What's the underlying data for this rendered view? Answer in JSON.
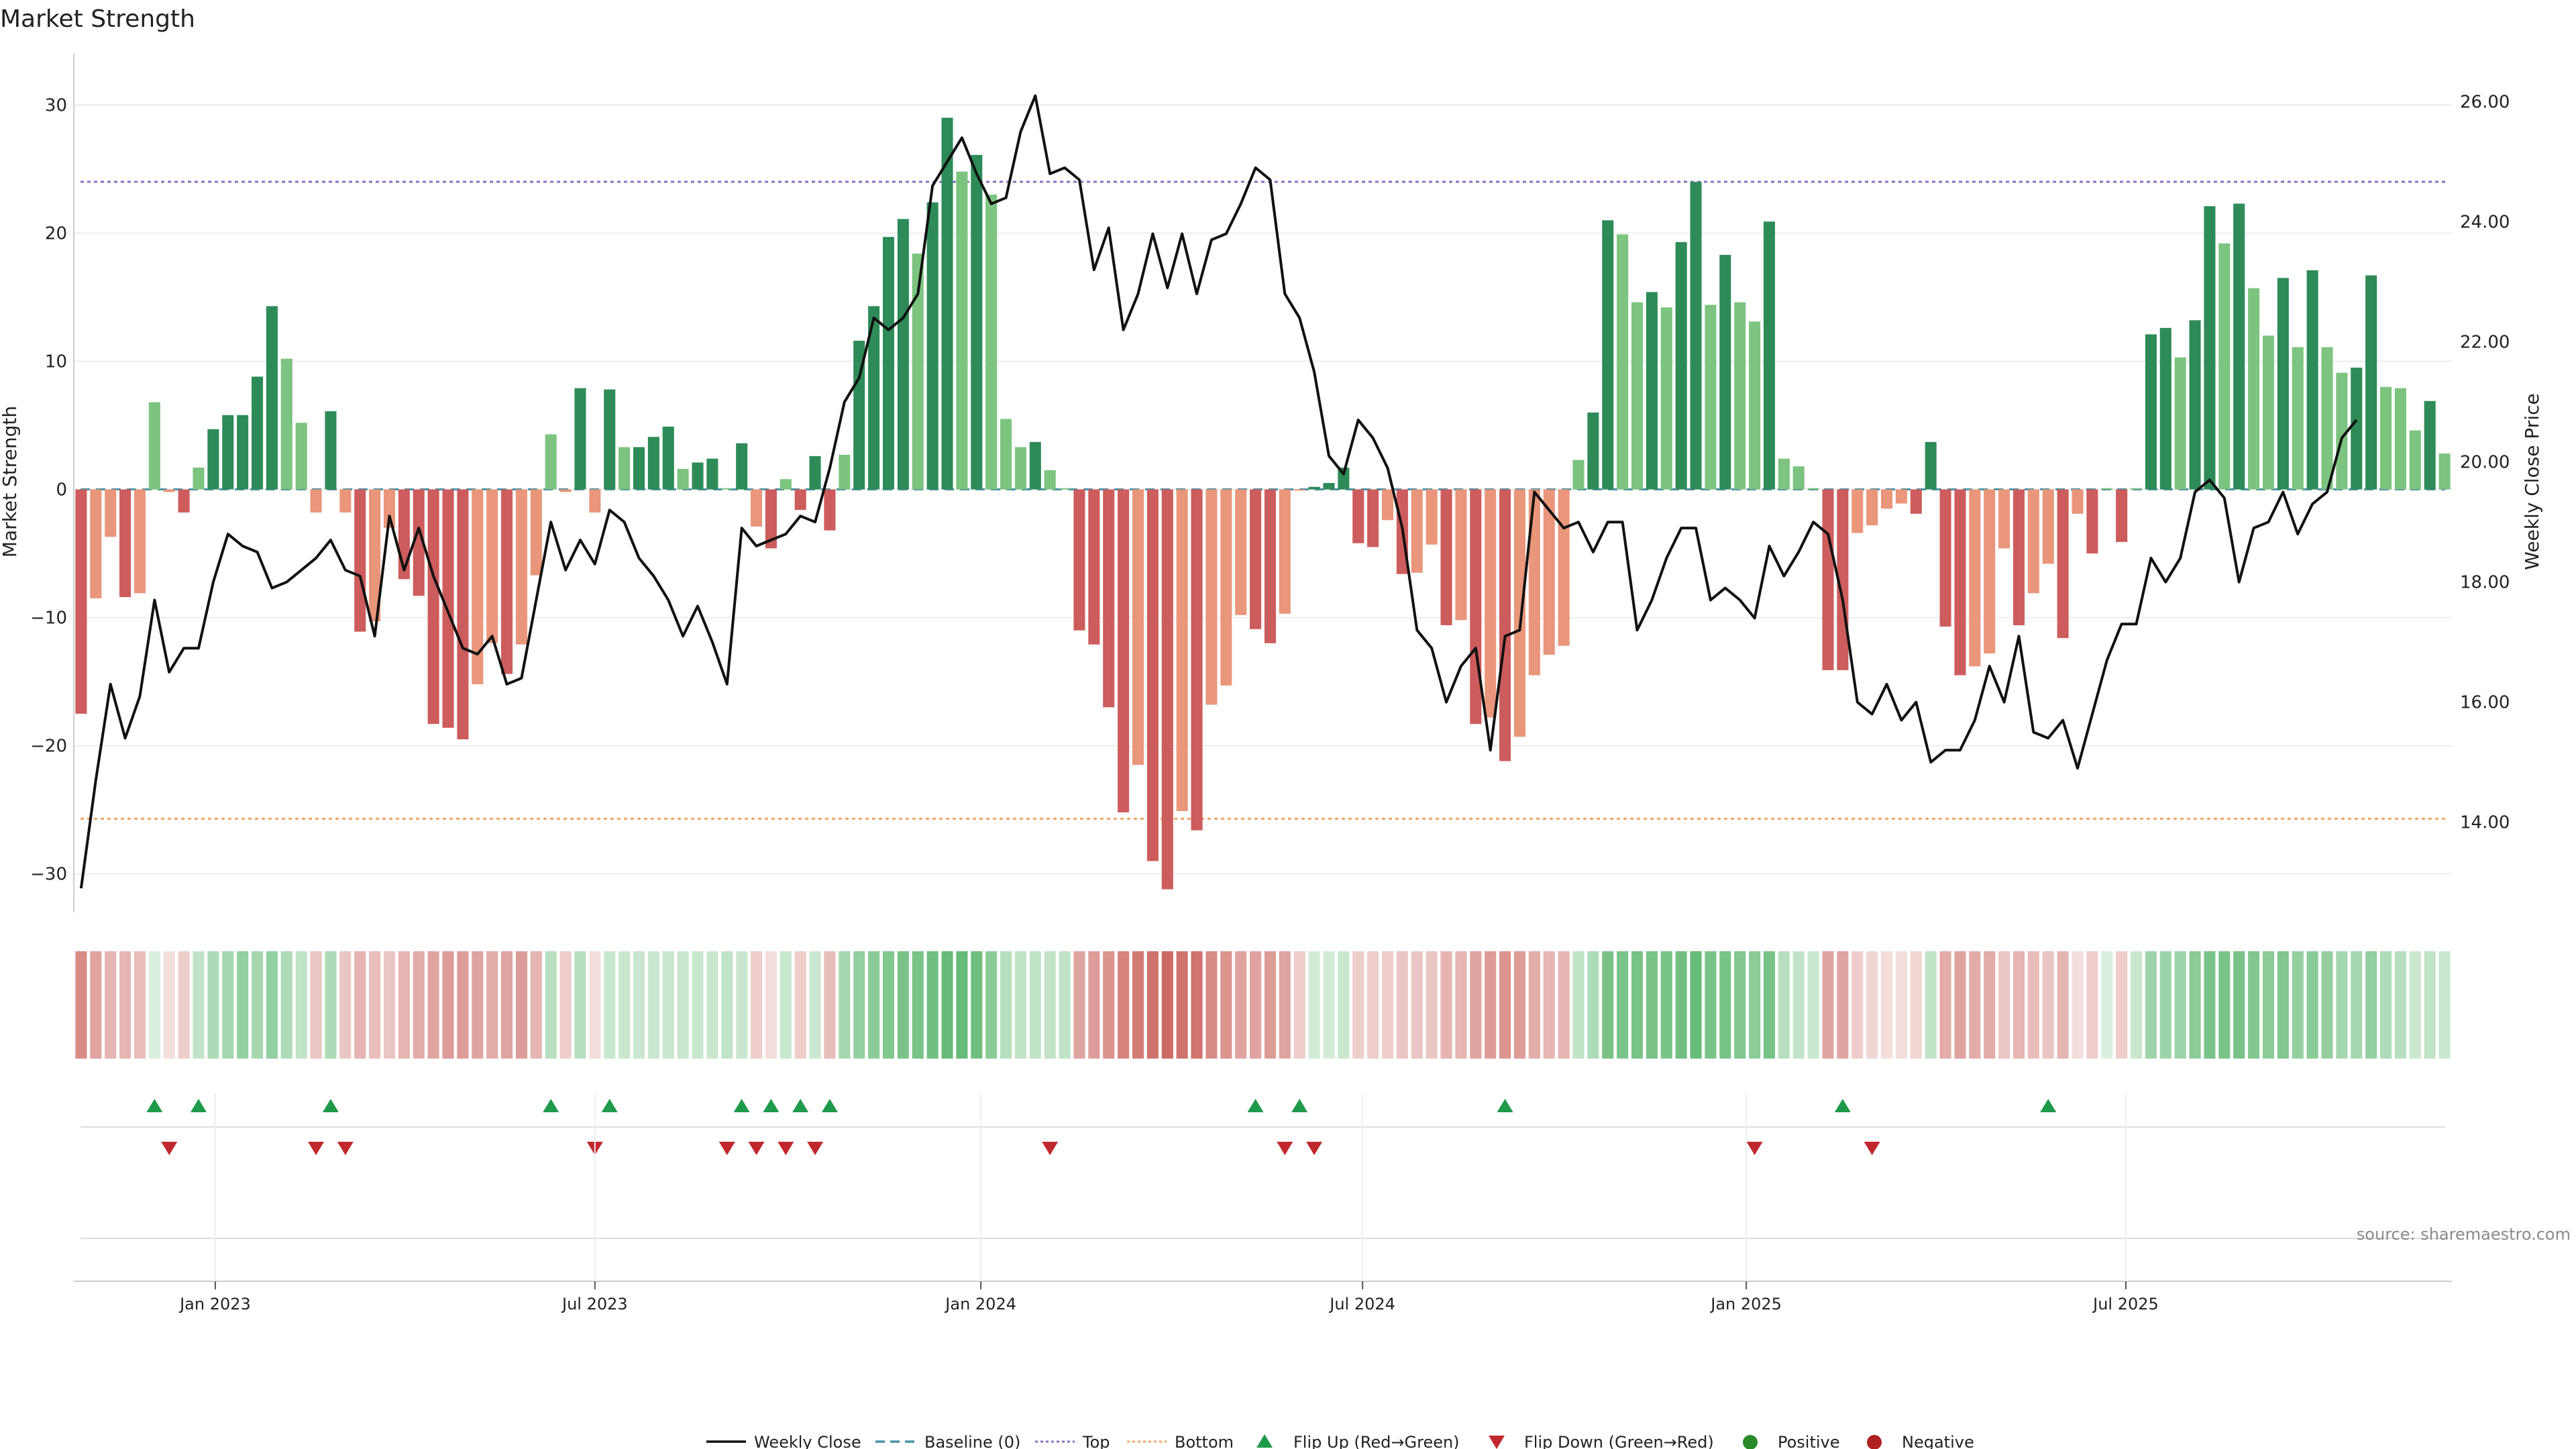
{
  "chart_data": {
    "type": "bar",
    "title": "Market Strength",
    "ylabel": "Market Strength",
    "y2label": "Weekly Close Price",
    "ylim": [
      -33,
      34
    ],
    "y2lim": [
      12.5,
      26.8
    ],
    "yticks": [
      -30,
      -20,
      -10,
      0,
      10,
      20,
      30
    ],
    "y2ticks": [
      "14.00",
      "16.00",
      "18.00",
      "20.00",
      "22.00",
      "24.00",
      "26.00"
    ],
    "top_level": 24,
    "bottom_level": -25.7,
    "start_date": "2022-10-31",
    "xticks": [
      {
        "label": "Jan 2023",
        "week": 9.14
      },
      {
        "label": "Jul 2023",
        "week": 35
      },
      {
        "label": "Jan 2024",
        "week": 61.29
      },
      {
        "label": "Jul 2024",
        "week": 87.29
      },
      {
        "label": "Jan 2025",
        "week": 113.43
      },
      {
        "label": "Jul 2025",
        "week": 139.29
      }
    ],
    "strength": [
      -17.5,
      -8.5,
      -3.7,
      -8.4,
      -8.1,
      6.8,
      -0.2,
      -1.8,
      1.7,
      4.7,
      5.8,
      5.8,
      8.8,
      14.3,
      10.2,
      5.2,
      -1.8,
      6.1,
      -1.8,
      -11.1,
      -10.3,
      -3.0,
      -7.0,
      -8.3,
      -18.3,
      -18.6,
      -19.5,
      -15.2,
      -12.0,
      -14.4,
      -12.1,
      -6.7,
      4.3,
      -0.2,
      7.9,
      -1.8,
      7.8,
      3.3,
      3.3,
      4.1,
      4.9,
      1.6,
      2.1,
      2.4,
      0.1,
      3.6,
      -2.9,
      -4.6,
      0.8,
      -1.6,
      2.6,
      -3.2,
      2.7,
      11.6,
      14.3,
      19.7,
      21.1,
      18.4,
      22.4,
      29.0,
      24.8,
      26.1,
      23.0,
      5.5,
      3.3,
      3.7,
      1.5,
      0.1,
      -11.0,
      -12.1,
      -17.0,
      -25.2,
      -21.5,
      -29.0,
      -31.2,
      -25.1,
      -26.6,
      -16.8,
      -15.3,
      -9.8,
      -10.9,
      -12.0,
      -9.7,
      -0.1,
      0.2,
      0.5,
      1.7,
      -4.2,
      -4.5,
      -2.4,
      -6.6,
      -6.5,
      -4.3,
      -10.6,
      -10.2,
      -18.3,
      -17.8,
      -21.2,
      -19.3,
      -14.5,
      -12.9,
      -12.2,
      2.3,
      6.0,
      21.0,
      19.9,
      14.6,
      15.4,
      14.2,
      19.3,
      24.0,
      14.4,
      18.3,
      14.6,
      13.1,
      20.9,
      2.4,
      1.8,
      0.1,
      -14.1,
      -14.1,
      -3.4,
      -2.8,
      -1.5,
      -1.1,
      -1.9,
      3.7,
      -10.7,
      -14.5,
      -13.8,
      -12.8,
      -4.6,
      -10.6,
      -8.1,
      -5.8,
      -11.6,
      -1.9,
      -5.0,
      0.1,
      -4.1,
      0.1,
      12.1,
      12.6,
      10.3,
      13.2,
      22.1,
      19.2,
      22.3,
      15.7,
      12.0,
      16.5,
      11.1,
      17.1,
      11.1,
      9.1,
      9.5,
      16.7,
      8.0,
      7.9,
      4.6,
      6.9,
      2.8
    ],
    "close": [
      12.9,
      14.7,
      16.3,
      15.4,
      16.1,
      17.7,
      16.5,
      16.9,
      16.9,
      18.0,
      18.8,
      18.6,
      18.5,
      17.9,
      18.0,
      18.2,
      18.4,
      18.7,
      18.2,
      18.1,
      17.1,
      19.1,
      18.2,
      18.9,
      18.1,
      17.5,
      16.9,
      16.8,
      17.1,
      16.3,
      16.4,
      17.7,
      19.0,
      18.2,
      18.7,
      18.3,
      19.2,
      19.0,
      18.4,
      18.1,
      17.7,
      17.1,
      17.6,
      17.0,
      16.3,
      18.9,
      18.6,
      18.7,
      18.8,
      19.1,
      19.0,
      19.9,
      21.0,
      21.4,
      22.4,
      22.2,
      22.4,
      22.8,
      24.6,
      25.0,
      25.4,
      24.8,
      24.3,
      24.4,
      25.5,
      26.1,
      24.8,
      24.9,
      24.7,
      23.2,
      23.9,
      22.2,
      22.8,
      23.8,
      22.9,
      23.8,
      22.8,
      23.7,
      23.8,
      24.3,
      24.9,
      24.7,
      22.8,
      22.4,
      21.5,
      20.1,
      19.8,
      20.7,
      20.4,
      19.9,
      18.9,
      17.2,
      16.9,
      16.0,
      16.6,
      16.9,
      15.2,
      17.1,
      17.2,
      19.5,
      19.2,
      18.9,
      19.0,
      18.5,
      19.0,
      19.0,
      17.2,
      17.7,
      18.4,
      18.9,
      18.9,
      17.7,
      17.9,
      17.7,
      17.4,
      18.6,
      18.1,
      18.5,
      19.0,
      18.8,
      17.7,
      16.0,
      15.8,
      16.3,
      15.7,
      16.0,
      15.0,
      15.2,
      15.2,
      15.7,
      16.6,
      16.0,
      17.1,
      15.5,
      15.4,
      15.7,
      14.9,
      15.8,
      16.7,
      17.3,
      17.3,
      18.4,
      18.0,
      18.4,
      19.5,
      19.7,
      19.4,
      18.0,
      18.9,
      19.0,
      19.5,
      18.8,
      19.3,
      19.5,
      20.4,
      20.7
    ],
    "heat_alpha": [
      0.7,
      0.55,
      0.45,
      0.45,
      0.4,
      0.2,
      0.2,
      0.3,
      0.35,
      0.45,
      0.5,
      0.6,
      0.5,
      0.6,
      0.45,
      0.35,
      0.35,
      0.45,
      0.35,
      0.45,
      0.4,
      0.35,
      0.45,
      0.5,
      0.55,
      0.6,
      0.6,
      0.55,
      0.5,
      0.55,
      0.6,
      0.45,
      0.4,
      0.3,
      0.4,
      0.2,
      0.3,
      0.3,
      0.3,
      0.3,
      0.3,
      0.3,
      0.3,
      0.3,
      0.35,
      0.3,
      0.3,
      0.2,
      0.3,
      0.3,
      0.3,
      0.4,
      0.5,
      0.6,
      0.65,
      0.7,
      0.75,
      0.75,
      0.8,
      0.85,
      0.85,
      0.8,
      0.65,
      0.4,
      0.35,
      0.35,
      0.35,
      0.35,
      0.55,
      0.6,
      0.65,
      0.75,
      0.8,
      0.85,
      0.9,
      0.85,
      0.85,
      0.7,
      0.65,
      0.55,
      0.55,
      0.6,
      0.55,
      0.3,
      0.25,
      0.25,
      0.3,
      0.3,
      0.3,
      0.3,
      0.35,
      0.35,
      0.35,
      0.45,
      0.45,
      0.55,
      0.6,
      0.65,
      0.6,
      0.5,
      0.45,
      0.45,
      0.35,
      0.45,
      0.75,
      0.75,
      0.75,
      0.75,
      0.75,
      0.8,
      0.85,
      0.75,
      0.75,
      0.7,
      0.65,
      0.75,
      0.4,
      0.35,
      0.3,
      0.55,
      0.55,
      0.3,
      0.25,
      0.2,
      0.2,
      0.25,
      0.35,
      0.5,
      0.55,
      0.5,
      0.5,
      0.35,
      0.45,
      0.4,
      0.35,
      0.45,
      0.2,
      0.3,
      0.2,
      0.3,
      0.3,
      0.55,
      0.55,
      0.55,
      0.65,
      0.75,
      0.75,
      0.75,
      0.7,
      0.65,
      0.7,
      0.6,
      0.65,
      0.6,
      0.5,
      0.5,
      0.6,
      0.45,
      0.4,
      0.3,
      0.35,
      0.3
    ],
    "flip_up_weeks": [
      5,
      8,
      17,
      32,
      36,
      45,
      47,
      49,
      51,
      80,
      83,
      97,
      120,
      134
    ],
    "flip_down_weeks": [
      6,
      16,
      18,
      35,
      44,
      46,
      48,
      50,
      66,
      82,
      84,
      114,
      122
    ],
    "legend": {
      "weekly_close": "Weekly Close",
      "baseline": "Baseline (0)",
      "top": "Top",
      "bottom": "Bottom",
      "flip_up": "Flip Up (Red→Green)",
      "flip_down": "Flip Down (Green→Red)",
      "positive": "Positive",
      "negative": "Negative"
    },
    "source": "source: sharemaestro.com",
    "colors": {
      "pos_dark": "#2e8b57",
      "pos_light": "#7cc47f",
      "neg_dark": "#cd5c5c",
      "neg_light": "#e9967a",
      "heat_pos": "#4caf60",
      "heat_neg": "#c75a52",
      "flip_up": "#1f9a4a",
      "flip_down": "#c0282d",
      "positive": "#2a8a2a",
      "negative": "#b02020",
      "top": "#8a6fc0",
      "bottom": "#f0a868",
      "baseline": "#4a90a4",
      "line": "#111111"
    }
  }
}
